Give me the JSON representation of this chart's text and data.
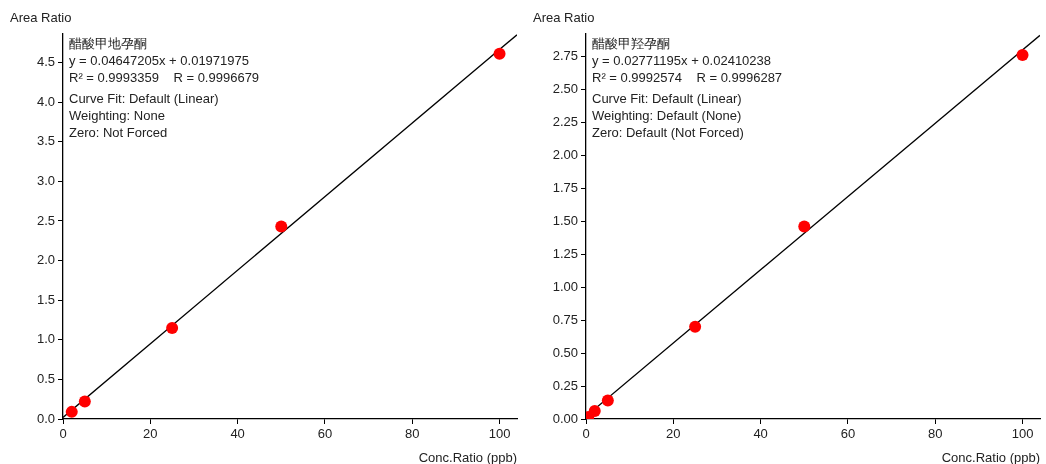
{
  "chart_data": [
    {
      "type": "scatter",
      "xlabel": "Conc.Ratio (ppb)",
      "ylabel": "Area Ratio",
      "annotations": [
        "醋酸甲地孕酮",
        "y = 0.04647205x + 0.01971975",
        "R² = 0.9993359    R = 0.9996679",
        "Curve Fit: Default (Linear)",
        "Weighting: None",
        "Zero: Not Forced"
      ],
      "series": [
        {
          "type": "line",
          "color": "#000000",
          "x": [
            0,
            104
          ],
          "values": [
            0.02,
            4.85
          ],
          "marker": "none"
        },
        {
          "color": "#ff0000",
          "x": [
            2,
            5,
            25,
            50,
            100
          ],
          "values": [
            0.09,
            0.22,
            1.15,
            2.43,
            4.61
          ],
          "marker": "circle"
        }
      ],
      "xlim": [
        0,
        104
      ],
      "xticks": [
        0,
        20,
        40,
        60,
        80,
        100
      ],
      "ylim": [
        0,
        4.86
      ],
      "yticks": [
        {
          "value": 0,
          "label": "0.0"
        },
        0.5,
        {
          "value": 1,
          "label": "1.0"
        },
        1.5,
        {
          "value": 2,
          "label": "2.0"
        },
        2.5,
        {
          "value": 3,
          "label": "3.0"
        },
        3.5,
        {
          "value": 4,
          "label": "4.0"
        },
        4.5
      ],
      "grid": false,
      "legend": false
    },
    {
      "type": "scatter",
      "xlabel": "Conc.Ratio (ppb)",
      "ylabel": "Area Ratio",
      "annotations": [
        "醋酸甲羟孕酮",
        "y = 0.02771195x + 0.02410238",
        "R² = 0.9992574    R = 0.9996287",
        "Curve Fit: Default (Linear)",
        "Weighting: Default (None)",
        "Zero: Default (Not Forced)"
      ],
      "series": [
        {
          "type": "line",
          "color": "#000000",
          "x": [
            0,
            104
          ],
          "values": [
            0.02,
            2.91
          ],
          "marker": "none"
        },
        {
          "color": "#ff0000",
          "x": [
            0.5,
            2,
            5,
            25,
            50,
            100
          ],
          "values": [
            0.015,
            0.06,
            0.14,
            0.7,
            1.46,
            2.76
          ],
          "marker": "circle"
        }
      ],
      "xlim": [
        0,
        104
      ],
      "xticks": [
        0,
        20,
        40,
        60,
        80,
        100
      ],
      "ylim": [
        0,
        2.92
      ],
      "yticks": [
        {
          "value": 0,
          "label": "0.00"
        },
        0.25,
        {
          "value": 0.5,
          "label": "0.50"
        },
        0.75,
        {
          "value": 1,
          "label": "1.00"
        },
        1.25,
        {
          "value": 1.5,
          "label": "1.50"
        },
        1.75,
        {
          "value": 2,
          "label": "2.00"
        },
        2.25,
        {
          "value": 2.5,
          "label": "2.50"
        },
        2.75
      ],
      "grid": false,
      "legend": false
    }
  ]
}
